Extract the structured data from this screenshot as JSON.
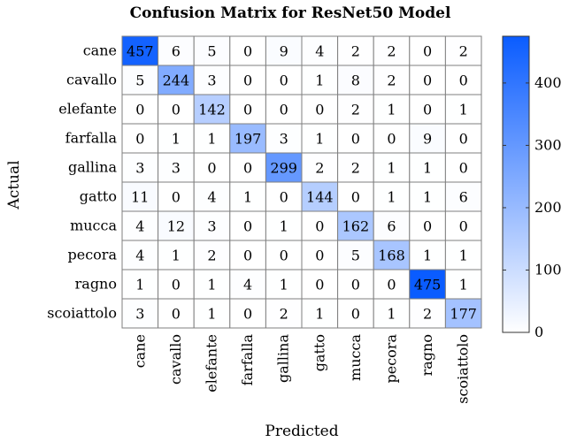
{
  "chart_data": {
    "type": "heatmap",
    "title": "Confusion Matrix for ResNet50 Model",
    "xlabel": "Predicted",
    "ylabel": "Actual",
    "categories": [
      "cane",
      "cavallo",
      "elefante",
      "farfalla",
      "gallina",
      "gatto",
      "mucca",
      "pecora",
      "ragno",
      "scoiattolo"
    ],
    "matrix": [
      [
        457,
        6,
        5,
        0,
        9,
        4,
        2,
        2,
        0,
        2
      ],
      [
        5,
        244,
        3,
        0,
        0,
        1,
        8,
        2,
        0,
        0
      ],
      [
        0,
        0,
        142,
        0,
        0,
        0,
        2,
        1,
        0,
        1
      ],
      [
        0,
        1,
        1,
        197,
        3,
        1,
        0,
        0,
        9,
        0
      ],
      [
        3,
        3,
        0,
        0,
        299,
        2,
        2,
        1,
        1,
        0
      ],
      [
        11,
        0,
        4,
        1,
        0,
        144,
        0,
        1,
        1,
        6
      ],
      [
        4,
        12,
        3,
        0,
        1,
        0,
        162,
        6,
        0,
        0
      ],
      [
        4,
        1,
        2,
        0,
        0,
        0,
        5,
        168,
        1,
        1
      ],
      [
        1,
        0,
        1,
        4,
        1,
        0,
        0,
        0,
        475,
        1
      ],
      [
        3,
        0,
        1,
        0,
        2,
        1,
        0,
        1,
        2,
        177
      ]
    ],
    "colorbar": {
      "min": 0,
      "max": 475,
      "ticks": [
        0,
        100,
        200,
        300,
        400
      ],
      "color_low": "#ffffff",
      "color_high": "#0a5cff"
    }
  }
}
